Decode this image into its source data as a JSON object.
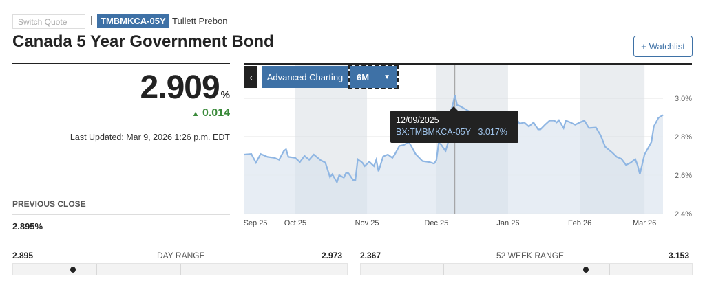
{
  "header": {
    "switch_placeholder": "Switch Quote",
    "separator": "|",
    "ticker": "TMBMKCA-05Y",
    "source": "Tullett Prebon",
    "title": "Canada 5 Year Government Bond",
    "watchlist_icon": "+",
    "watchlist_label": "Watchlist"
  },
  "quote": {
    "price": "2.909",
    "unit": "%",
    "change_icon": "triangle-up",
    "change": "0.014",
    "last_updated": "Last Updated: Mar 9, 2026 1:26 p.m. EDT",
    "previous_close_label": "PREVIOUS CLOSE",
    "previous_close": "2.895%"
  },
  "ranges": {
    "day": {
      "low": "2.895",
      "label": "DAY RANGE",
      "high": "2.973",
      "position": 0.18
    },
    "week52": {
      "low": "2.367",
      "label": "52 WEEK RANGE",
      "high": "3.153",
      "position": 0.68
    }
  },
  "chart_controls": {
    "back_icon": "‹",
    "advanced": "Advanced Charting",
    "range": "6M",
    "range_icon": "▼"
  },
  "tooltip": {
    "date": "12/09/2025",
    "series": "BX:TMBMKCA-05Y",
    "value": "3.017%"
  },
  "colors": {
    "accent": "#3e71a6",
    "line": "#8fb6e3",
    "fill": "#e3eaf2",
    "up": "#3a8a3a"
  },
  "chart_data": {
    "type": "area",
    "ylim": [
      2.4,
      3.1
    ],
    "yticks": [
      "3.0%",
      "2.8%",
      "2.6%",
      "2.4%"
    ],
    "ytick_values": [
      3.0,
      2.8,
      2.6,
      2.4
    ],
    "xticks": [
      "Sep 25",
      "Oct 25",
      "Nov 25",
      "Dec 25",
      "Jan 26",
      "Feb 26",
      "Mar 26"
    ],
    "xtick_dates": [
      "2025-09-01",
      "2025-10-01",
      "2025-11-01",
      "2025-12-01",
      "2026-01-01",
      "2026-02-01",
      "2026-03-01"
    ],
    "xlim": [
      "2025-09-09",
      "2026-03-09"
    ],
    "grid": true,
    "series": [
      {
        "points": [
          [
            "2025-09-09",
            2.707
          ],
          [
            "2025-09-12",
            2.71
          ],
          [
            "2025-09-14",
            2.665
          ],
          [
            "2025-09-16",
            2.71
          ],
          [
            "2025-09-19",
            2.695
          ],
          [
            "2025-09-22",
            2.69
          ],
          [
            "2025-09-24",
            2.68
          ],
          [
            "2025-09-26",
            2.725
          ],
          [
            "2025-09-27",
            2.735
          ],
          [
            "2025-09-28",
            2.695
          ],
          [
            "2025-10-01",
            2.69
          ],
          [
            "2025-10-03",
            2.668
          ],
          [
            "2025-10-05",
            2.7
          ],
          [
            "2025-10-07",
            2.68
          ],
          [
            "2025-10-09",
            2.707
          ],
          [
            "2025-10-12",
            2.677
          ],
          [
            "2025-10-14",
            2.665
          ],
          [
            "2025-10-16",
            2.59
          ],
          [
            "2025-10-17",
            2.605
          ],
          [
            "2025-10-19",
            2.563
          ],
          [
            "2025-10-20",
            2.6
          ],
          [
            "2025-10-22",
            2.587
          ],
          [
            "2025-10-23",
            2.613
          ],
          [
            "2025-10-24",
            2.61
          ],
          [
            "2025-10-26",
            2.575
          ],
          [
            "2025-10-27",
            2.575
          ],
          [
            "2025-10-28",
            2.683
          ],
          [
            "2025-10-30",
            2.665
          ],
          [
            "2025-10-31",
            2.647
          ],
          [
            "2025-11-02",
            2.67
          ],
          [
            "2025-11-04",
            2.647
          ],
          [
            "2025-11-05",
            2.68
          ],
          [
            "2025-11-06",
            2.62
          ],
          [
            "2025-11-08",
            2.697
          ],
          [
            "2025-11-10",
            2.707
          ],
          [
            "2025-11-12",
            2.69
          ],
          [
            "2025-11-13",
            2.707
          ],
          [
            "2025-11-15",
            2.752
          ],
          [
            "2025-11-17",
            2.757
          ],
          [
            "2025-11-19",
            2.772
          ],
          [
            "2025-11-20",
            2.754
          ],
          [
            "2025-11-22",
            2.71
          ],
          [
            "2025-11-25",
            2.673
          ],
          [
            "2025-11-28",
            2.668
          ],
          [
            "2025-11-30",
            2.66
          ],
          [
            "2025-12-01",
            2.677
          ],
          [
            "2025-12-02",
            2.767
          ],
          [
            "2025-12-03",
            2.76
          ],
          [
            "2025-12-05",
            2.725
          ],
          [
            "2025-12-06",
            2.767
          ],
          [
            "2025-12-07",
            2.922
          ],
          [
            "2025-12-08",
            2.96
          ],
          [
            "2025-12-09",
            3.017
          ],
          [
            "2025-12-10",
            2.964
          ],
          [
            "2025-12-11",
            2.96
          ],
          [
            "2025-12-14",
            2.94
          ],
          [
            "2025-12-17",
            2.92
          ],
          [
            "2025-12-20",
            2.9
          ],
          [
            "2025-12-23",
            2.89
          ],
          [
            "2025-12-26",
            2.91
          ],
          [
            "2025-12-29",
            2.88
          ],
          [
            "2026-01-01",
            2.9
          ],
          [
            "2026-01-05",
            2.886
          ],
          [
            "2026-01-06",
            2.868
          ],
          [
            "2026-01-08",
            2.874
          ],
          [
            "2026-01-10",
            2.853
          ],
          [
            "2026-01-12",
            2.874
          ],
          [
            "2026-01-14",
            2.838
          ],
          [
            "2026-01-15",
            2.838
          ],
          [
            "2026-01-17",
            2.862
          ],
          [
            "2026-01-19",
            2.884
          ],
          [
            "2026-01-21",
            2.884
          ],
          [
            "2026-01-22",
            2.874
          ],
          [
            "2026-01-23",
            2.886
          ],
          [
            "2026-01-25",
            2.845
          ],
          [
            "2026-01-26",
            2.884
          ],
          [
            "2026-01-28",
            2.874
          ],
          [
            "2026-01-30",
            2.862
          ],
          [
            "2026-02-01",
            2.874
          ],
          [
            "2026-02-03",
            2.884
          ],
          [
            "2026-02-05",
            2.845
          ],
          [
            "2026-02-08",
            2.848
          ],
          [
            "2026-02-10",
            2.808
          ],
          [
            "2026-02-12",
            2.748
          ],
          [
            "2026-02-15",
            2.718
          ],
          [
            "2026-02-17",
            2.695
          ],
          [
            "2026-02-19",
            2.685
          ],
          [
            "2026-02-21",
            2.653
          ],
          [
            "2026-02-23",
            2.665
          ],
          [
            "2026-02-25",
            2.683
          ],
          [
            "2026-02-26",
            2.653
          ],
          [
            "2026-02-27",
            2.605
          ],
          [
            "2026-03-01",
            2.707
          ],
          [
            "2026-03-04",
            2.772
          ],
          [
            "2026-03-05",
            2.853
          ],
          [
            "2026-03-07",
            2.898
          ],
          [
            "2026-03-09",
            2.913
          ]
        ]
      }
    ],
    "highlight_date": "2025-12-09"
  }
}
